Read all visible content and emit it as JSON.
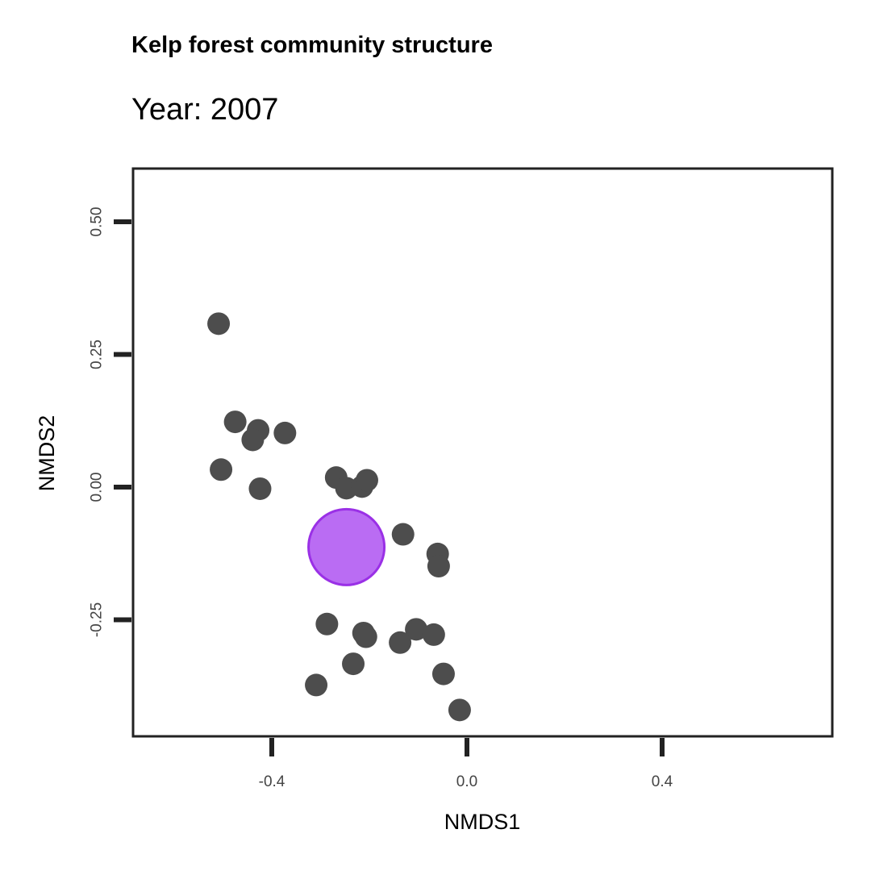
{
  "chart_data": {
    "type": "scatter",
    "title": "Kelp forest community structure",
    "subtitle": "Year: 2007",
    "xlabel": "NMDS1",
    "ylabel": "NMDS2",
    "xlim": [
      -0.7,
      0.75
    ],
    "ylim": [
      -0.47,
      0.6
    ],
    "x_ticks": [
      "-0.4",
      "0.0",
      "0.4"
    ],
    "x_tick_values": [
      -0.4,
      0.0,
      0.4
    ],
    "y_ticks": [
      "-0.25",
      "0.00",
      "0.25",
      "0.50"
    ],
    "y_tick_values": [
      -0.25,
      0.0,
      0.25,
      0.5
    ],
    "grid": false,
    "point_color": "#4d4d4d",
    "centroid_color": "#b35cf2",
    "centroid_border_color": "#9a30e6",
    "points": [
      {
        "x": -0.509,
        "y": 0.308
      },
      {
        "x": -0.475,
        "y": 0.123
      },
      {
        "x": -0.428,
        "y": 0.107
      },
      {
        "x": -0.439,
        "y": 0.089
      },
      {
        "x": -0.373,
        "y": 0.102
      },
      {
        "x": -0.504,
        "y": 0.033
      },
      {
        "x": -0.424,
        "y": -0.003
      },
      {
        "x": -0.268,
        "y": 0.018
      },
      {
        "x": -0.247,
        "y": -0.002
      },
      {
        "x": -0.215,
        "y": 0.001
      },
      {
        "x": -0.205,
        "y": 0.013
      },
      {
        "x": -0.131,
        "y": -0.089
      },
      {
        "x": -0.06,
        "y": -0.126
      },
      {
        "x": -0.058,
        "y": -0.149
      },
      {
        "x": -0.287,
        "y": -0.258
      },
      {
        "x": -0.212,
        "y": -0.275
      },
      {
        "x": -0.207,
        "y": -0.282
      },
      {
        "x": -0.104,
        "y": -0.268
      },
      {
        "x": -0.137,
        "y": -0.293
      },
      {
        "x": -0.068,
        "y": -0.278
      },
      {
        "x": -0.233,
        "y": -0.333
      },
      {
        "x": -0.309,
        "y": -0.373
      },
      {
        "x": -0.048,
        "y": -0.352
      },
      {
        "x": -0.015,
        "y": -0.42
      }
    ],
    "centroid": {
      "x": -0.247,
      "y": -0.113
    }
  }
}
